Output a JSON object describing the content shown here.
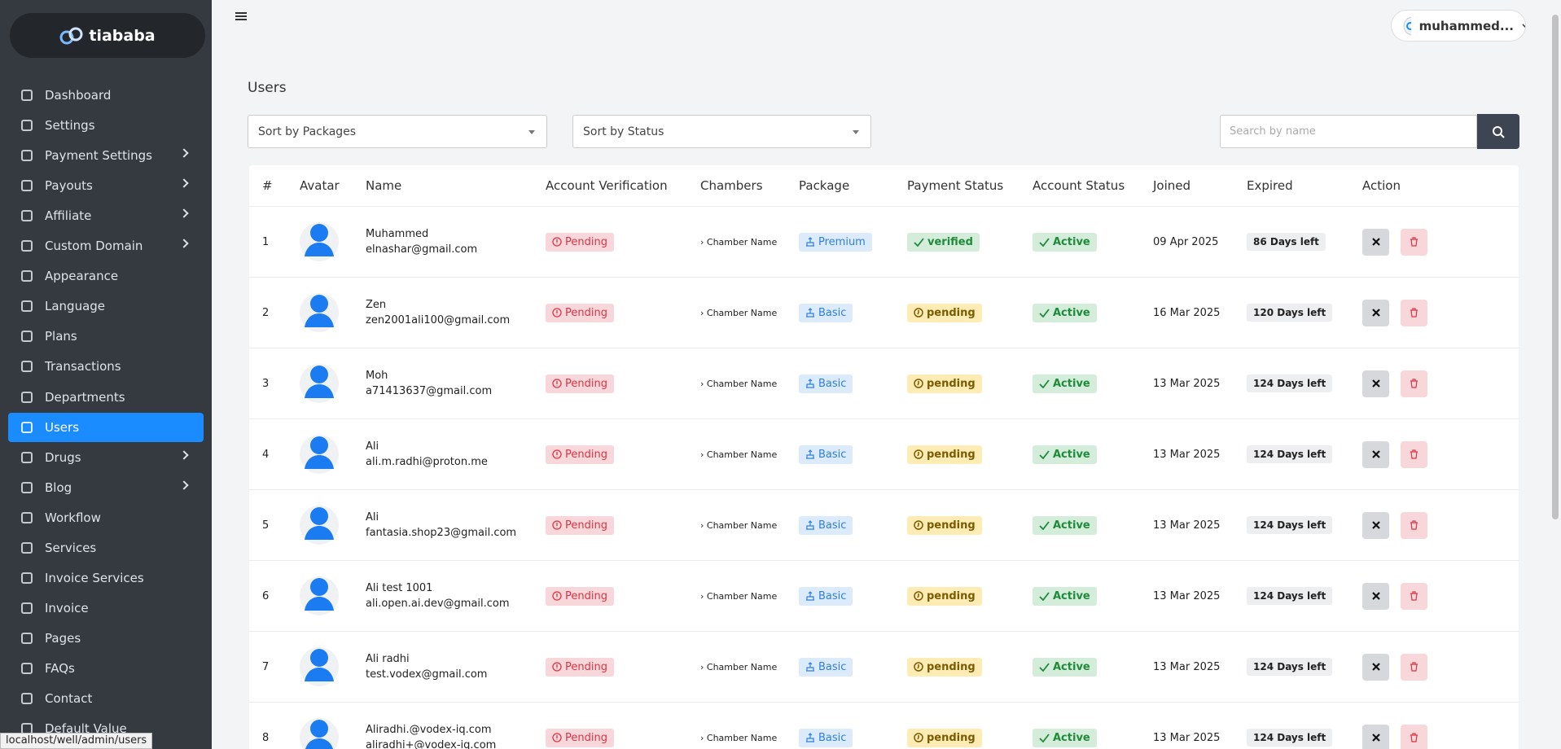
{
  "sidebar": {
    "brand": "tiababa",
    "menu": [
      "Dashboard",
      "Settings",
      "Payment Settings",
      "Payouts",
      "Affiliate",
      "Custom Domain",
      "Appearance",
      "Language",
      "Plans",
      "Transactions",
      "Departments",
      "Users",
      "Drugs",
      "Blog",
      "Workflow",
      "Services",
      "Invoice Services",
      "Invoice",
      "Pages",
      "FAQs",
      "Contact",
      "Default Value"
    ]
  },
  "header": {
    "user": "muhammed..."
  },
  "page": {
    "title": "Users",
    "filters": [
      "Sort by Packages",
      "Sort by Status"
    ],
    "search_placeholder": "Search by name"
  },
  "table": {
    "columns": [
      "#",
      "Avatar",
      "Name",
      "Account Verification",
      "Chambers",
      "Package",
      "Payment Status",
      "Account Status",
      "Joined",
      "Expired",
      "Action"
    ],
    "rows": [
      {
        "index": 1,
        "name": "Muhammed",
        "email": "elnashar@gmail.com",
        "verification": "Pending",
        "chamber": "Chamber Name",
        "package": "Premium",
        "payment": "verified",
        "status": "Active",
        "joined": "09 Apr 2025",
        "expired": "86 Days left"
      },
      {
        "index": 2,
        "name": "Zen",
        "email": "zen2001ali100@gmail.com",
        "verification": "Pending",
        "chamber": "Chamber Name",
        "package": "Basic",
        "payment": "pending",
        "status": "Active",
        "joined": "16 Mar 2025",
        "expired": "120 Days left"
      },
      {
        "index": 3,
        "name": "Moh",
        "email": "a71413637@gmail.com",
        "verification": "Pending",
        "chamber": "Chamber Name",
        "package": "Basic",
        "payment": "pending",
        "status": "Active",
        "joined": "13 Mar 2025",
        "expired": "124 Days left"
      },
      {
        "index": 4,
        "name": "Ali",
        "email": "ali.m.radhi@proton.me",
        "verification": "Pending",
        "chamber": "Chamber Name",
        "package": "Basic",
        "payment": "pending",
        "status": "Active",
        "joined": "13 Mar 2025",
        "expired": "124 Days left"
      },
      {
        "index": 5,
        "name": "Ali",
        "email": "fantasia.shop23@gmail.com",
        "verification": "Pending",
        "chamber": "Chamber Name",
        "package": "Basic",
        "payment": "pending",
        "status": "Active",
        "joined": "13 Mar 2025",
        "expired": "124 Days left"
      },
      {
        "index": 6,
        "name": "Ali test 1001",
        "email": "ali.open.ai.dev@gmail.com",
        "verification": "Pending",
        "chamber": "Chamber Name",
        "package": "Basic",
        "payment": "pending",
        "status": "Active",
        "joined": "13 Mar 2025",
        "expired": "124 Days left"
      },
      {
        "index": 7,
        "name": "Ali radhi",
        "email": "test.vodex@gmail.com",
        "verification": "Pending",
        "chamber": "Chamber Name",
        "package": "Basic",
        "payment": "pending",
        "status": "Active",
        "joined": "13 Mar 2025",
        "expired": "124 Days left"
      },
      {
        "index": 8,
        "name": "Aliradhi.@vodex-iq.com",
        "email": "aliradhi+@vodex-iq.com",
        "verification": "Pending",
        "chamber": "Chamber Name",
        "package": "Basic",
        "payment": "pending",
        "status": "Active",
        "joined": "13 Mar 2025",
        "expired": "124 Days left"
      }
    ]
  },
  "status_bar": "localhost/well/admin/users"
}
